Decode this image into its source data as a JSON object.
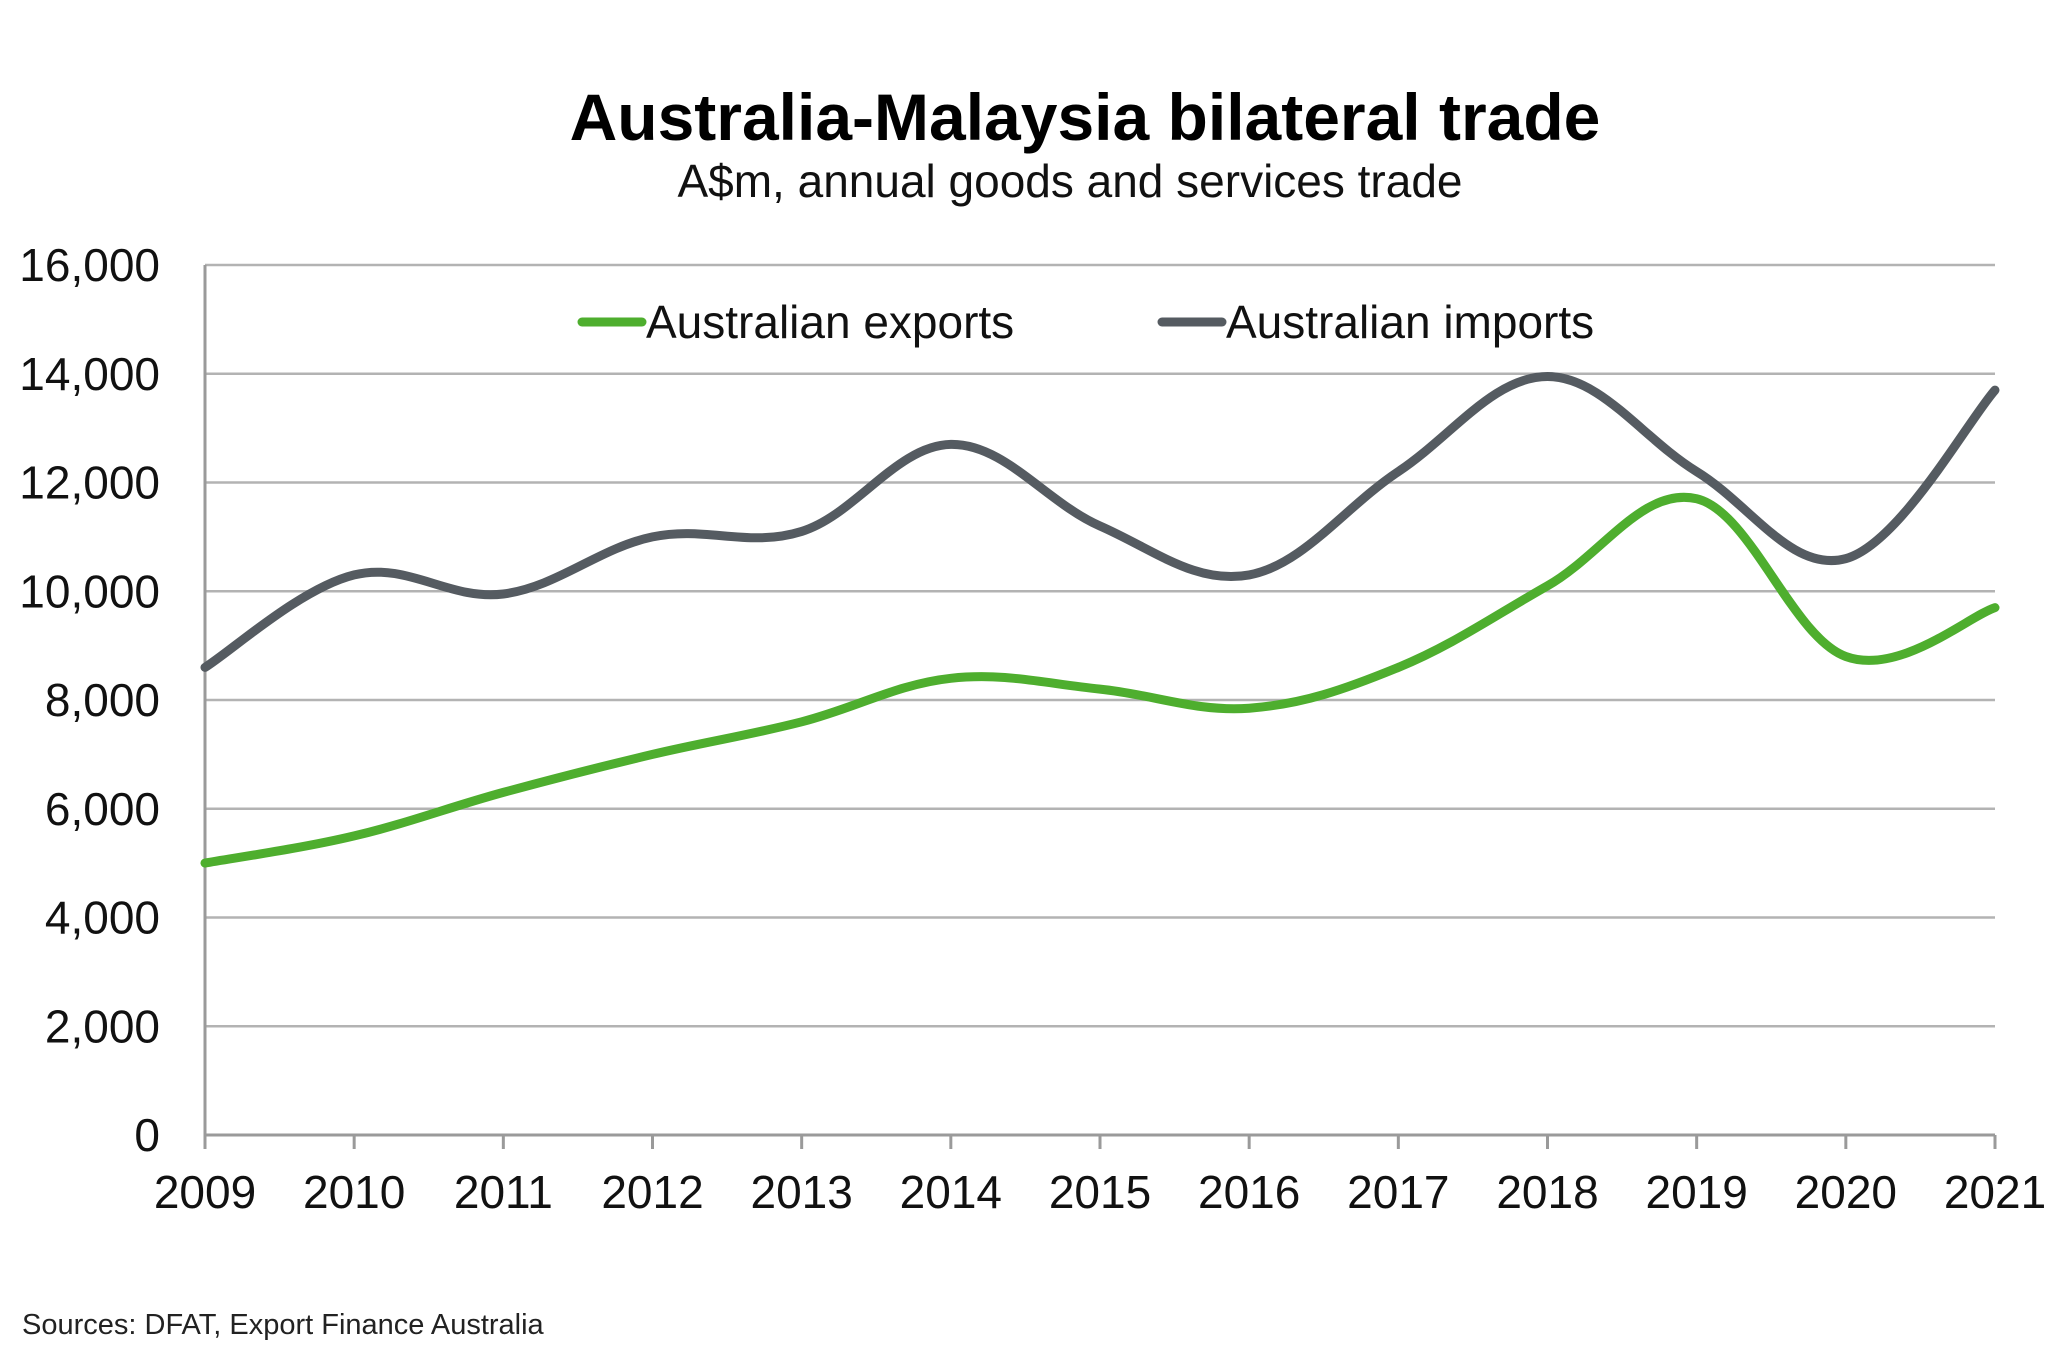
{
  "chart_data": {
    "type": "line",
    "title": "Australia-Malaysia bilateral trade",
    "subtitle": "A$m, annual goods and services trade",
    "x": [
      2009,
      2010,
      2011,
      2012,
      2013,
      2014,
      2015,
      2016,
      2017,
      2018,
      2019,
      2020,
      2021
    ],
    "x_tick_labels": [
      "2009",
      "2010",
      "2011",
      "2012",
      "2013",
      "2014",
      "2015",
      "2016",
      "2017",
      "2018",
      "2019",
      "2020",
      "2021"
    ],
    "ylim": [
      0,
      16000
    ],
    "y_ticks": [
      0,
      2000,
      4000,
      6000,
      8000,
      10000,
      12000,
      14000,
      16000
    ],
    "y_tick_labels": [
      "0",
      "2,000",
      "4,000",
      "6,000",
      "8,000",
      "10,000",
      "12,000",
      "14,000",
      "16,000"
    ],
    "grid": true,
    "legend_position": "top-center",
    "series": [
      {
        "name": "Australian exports",
        "color": "#4eae2e",
        "values": [
          5000,
          5500,
          6300,
          7000,
          7600,
          8400,
          8200,
          7850,
          8600,
          10100,
          11700,
          8800,
          9700
        ]
      },
      {
        "name": "Australian imports",
        "color": "#555b61",
        "values": [
          8600,
          10300,
          9950,
          11000,
          11100,
          12700,
          11200,
          10300,
          12200,
          13950,
          12200,
          10600,
          13700
        ]
      }
    ],
    "source": "Sources: DFAT, Export Finance Australia"
  }
}
